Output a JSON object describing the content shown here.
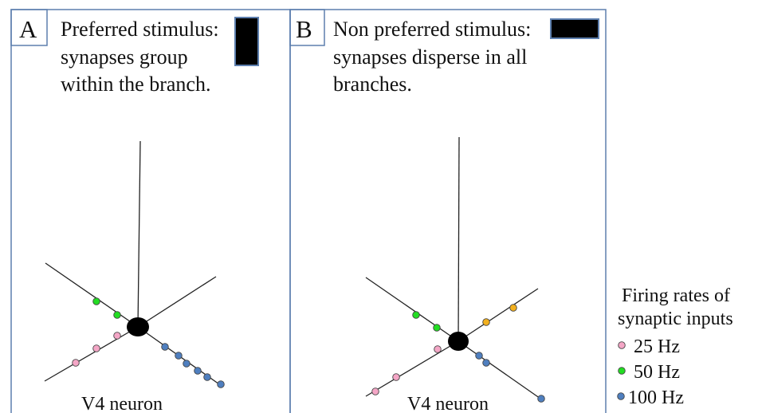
{
  "panels": [
    {
      "letter": "A",
      "caption_lines": [
        "Preferred stimulus:",
        "synapses group",
        "within the branch."
      ],
      "stimulus_orientation": "vertical",
      "neuron_label": "V4 neuron"
    },
    {
      "letter": "B",
      "caption_lines": [
        "Non preferred stimulus:",
        "synapses disperse in all",
        "branches."
      ],
      "stimulus_orientation": "horizontal",
      "neuron_label": "V4 neuron"
    }
  ],
  "legend": {
    "title_lines": [
      "Firing rates of",
      "synaptic inputs"
    ],
    "items": [
      {
        "label": "25 Hz",
        "color": "#f4a6c6"
      },
      {
        "label": "50 Hz",
        "color": "#22dd22"
      },
      {
        "label": "100 Hz",
        "color": "#4f7fbf"
      }
    ]
  },
  "colors": {
    "panel_border": "#5d7fae",
    "stimulus_bar": "#000000",
    "stimulus_bar_border": "#5d7fae",
    "soma": "#000000",
    "dendrite": "#222222",
    "synapse_25hz": "#f4a6c6",
    "synapse_50hz": "#22dd22",
    "synapse_100hz": "#4f7fbf",
    "synapse_other": "#f2b01e"
  }
}
